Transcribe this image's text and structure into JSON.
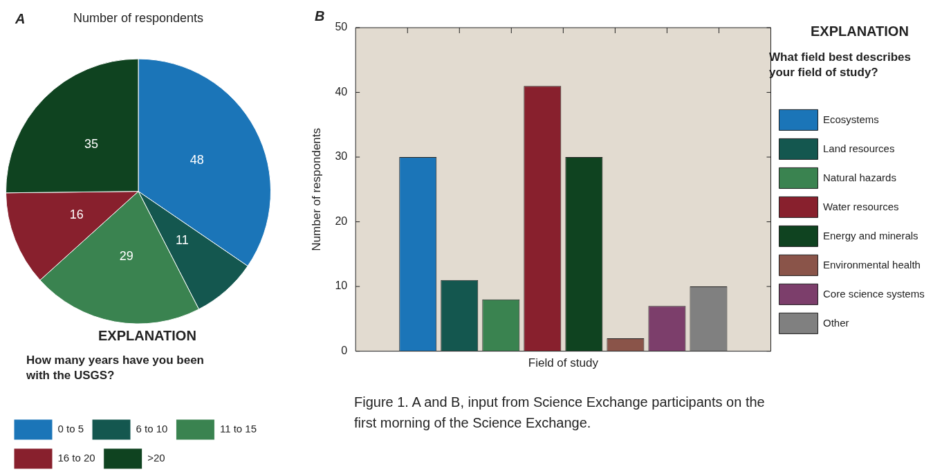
{
  "chart_data": [
    {
      "type": "pie",
      "title": "Number of respondents",
      "categories": [
        "0 to 5",
        "6 to 10",
        "11 to 15",
        "16 to 20",
        ">20"
      ],
      "values": [
        48,
        11,
        29,
        16,
        35
      ],
      "colors": [
        "#1b75b8",
        "#14574f",
        "#3a8350",
        "#88202d",
        "#0f4320"
      ],
      "data_labels": true,
      "legend": "bottom",
      "legend_title": "How many years have you been with the USGS?",
      "annotations": [
        "A",
        "EXPLANATION"
      ]
    },
    {
      "type": "bar",
      "categories": [
        null
      ],
      "series": [
        {
          "name": "Ecosystems",
          "color": "#1b75b8",
          "values": [
            30
          ]
        },
        {
          "name": "Land resources",
          "color": "#14574f",
          "values": [
            11
          ]
        },
        {
          "name": "Natural hazards",
          "color": "#3a8350",
          "values": [
            8
          ]
        },
        {
          "name": "Water resources",
          "color": "#88202d",
          "values": [
            41
          ]
        },
        {
          "name": "Energy and minerals",
          "color": "#0f4320",
          "values": [
            30
          ]
        },
        {
          "name": "Environmental health",
          "color": "#8a5449",
          "values": [
            2
          ]
        },
        {
          "name": "Core science systems",
          "color": "#7c3e6b",
          "values": [
            7
          ]
        },
        {
          "name": "Other",
          "color": "#808080",
          "values": [
            10
          ]
        }
      ],
      "tick_labels": "y",
      "xlabel": "Field of study",
      "ylabel": "Number of respondents",
      "ylim": [
        0,
        50
      ],
      "yticks": [
        0,
        10,
        20,
        30,
        40,
        50
      ],
      "legend": "right",
      "legend_title": "What field best describes your field of study?",
      "annotations": [
        "B",
        "EXPLANATION",
        "Figure 1.  A and B, input from Science Exchange participants on the first morning of the Science Exchange."
      ]
    }
  ]
}
